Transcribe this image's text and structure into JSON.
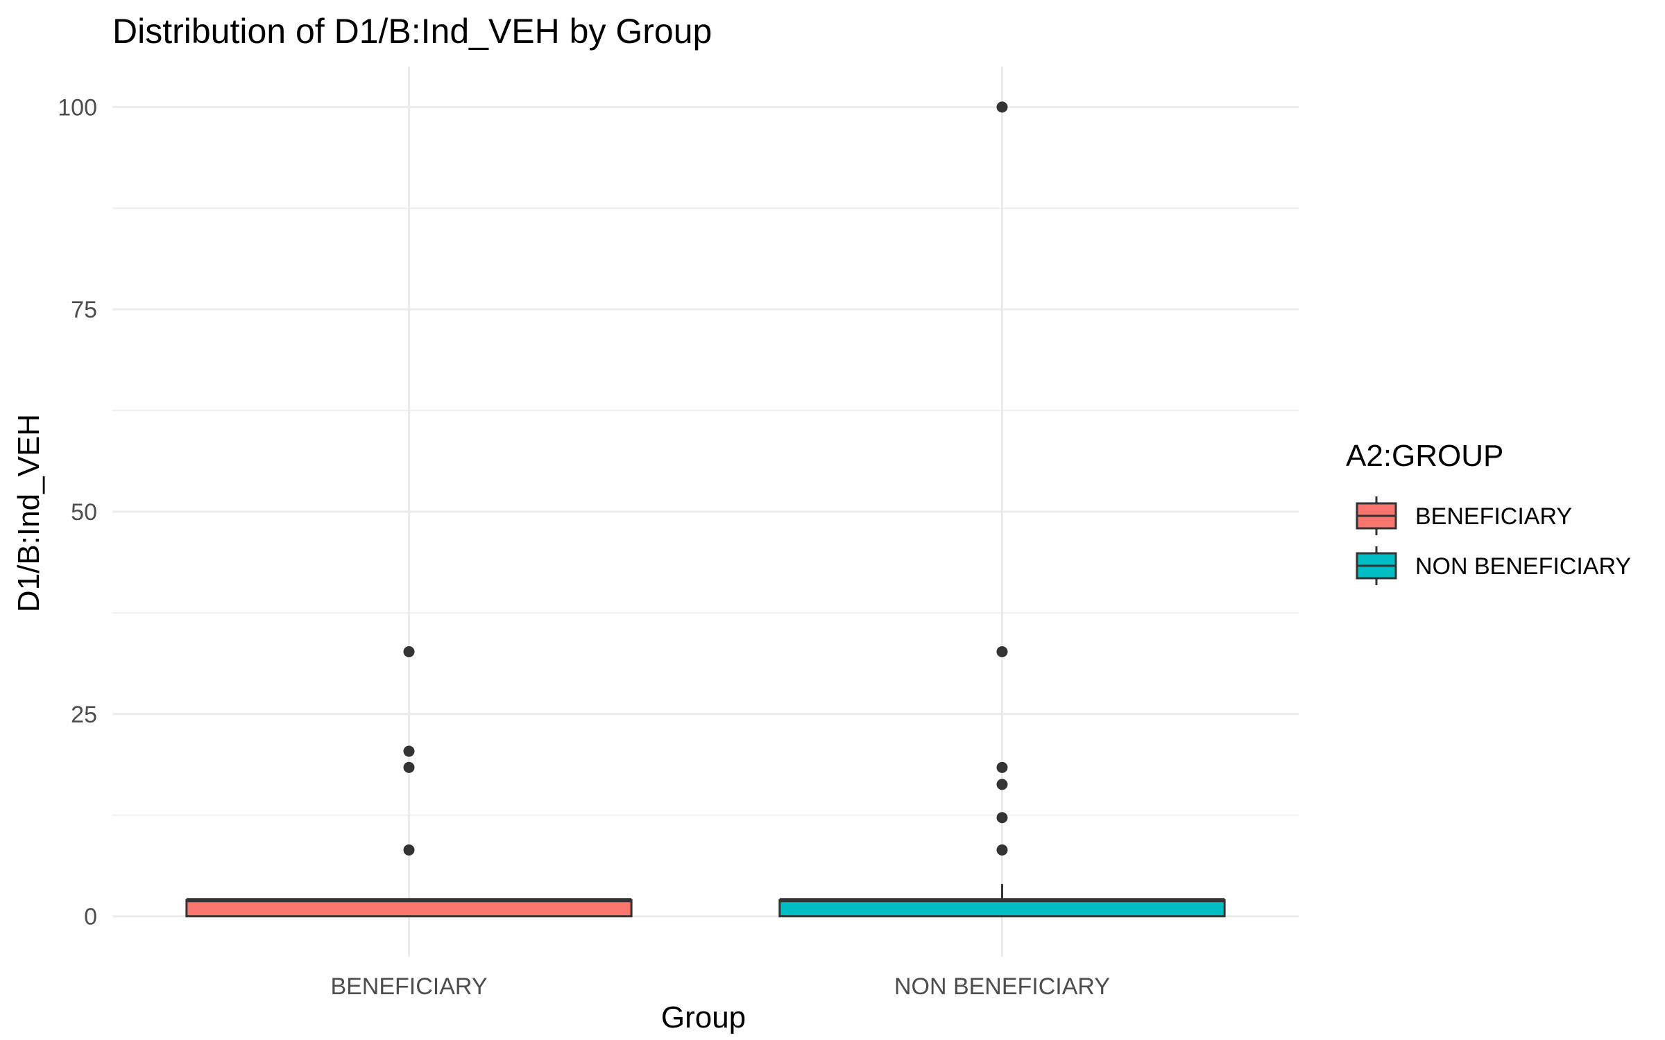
{
  "chart_data": {
    "type": "boxplot",
    "title": "Distribution of D1/B:Ind_VEH by Group",
    "xlabel": "Group",
    "ylabel": "D1/B:Ind_VEH",
    "ylim": [
      -5,
      105
    ],
    "yticks": [
      0,
      25,
      50,
      75,
      100
    ],
    "y_minor_ticks": [
      12.5,
      37.5,
      62.5,
      87.5
    ],
    "grid": true,
    "categories": [
      "BENEFICIARY",
      "NON BENEFICIARY"
    ],
    "series": [
      {
        "name": "BENEFICIARY",
        "color": "#F8766D",
        "q1": 0,
        "median": 2,
        "q3": 2,
        "whisker_low": 0,
        "whisker_high": 2,
        "outliers": [
          8.2,
          18.4,
          20.4,
          32.7
        ]
      },
      {
        "name": "NON BENEFICIARY",
        "color": "#00BFC4",
        "q1": 0,
        "median": 2,
        "q3": 2,
        "whisker_low": 0,
        "whisker_high": 4,
        "outliers": [
          8.2,
          12.2,
          16.3,
          18.4,
          32.7,
          100
        ]
      }
    ],
    "legend": {
      "title": "A2:GROUP",
      "position": "right",
      "entries": [
        "BENEFICIARY",
        "NON BENEFICIARY"
      ]
    }
  }
}
